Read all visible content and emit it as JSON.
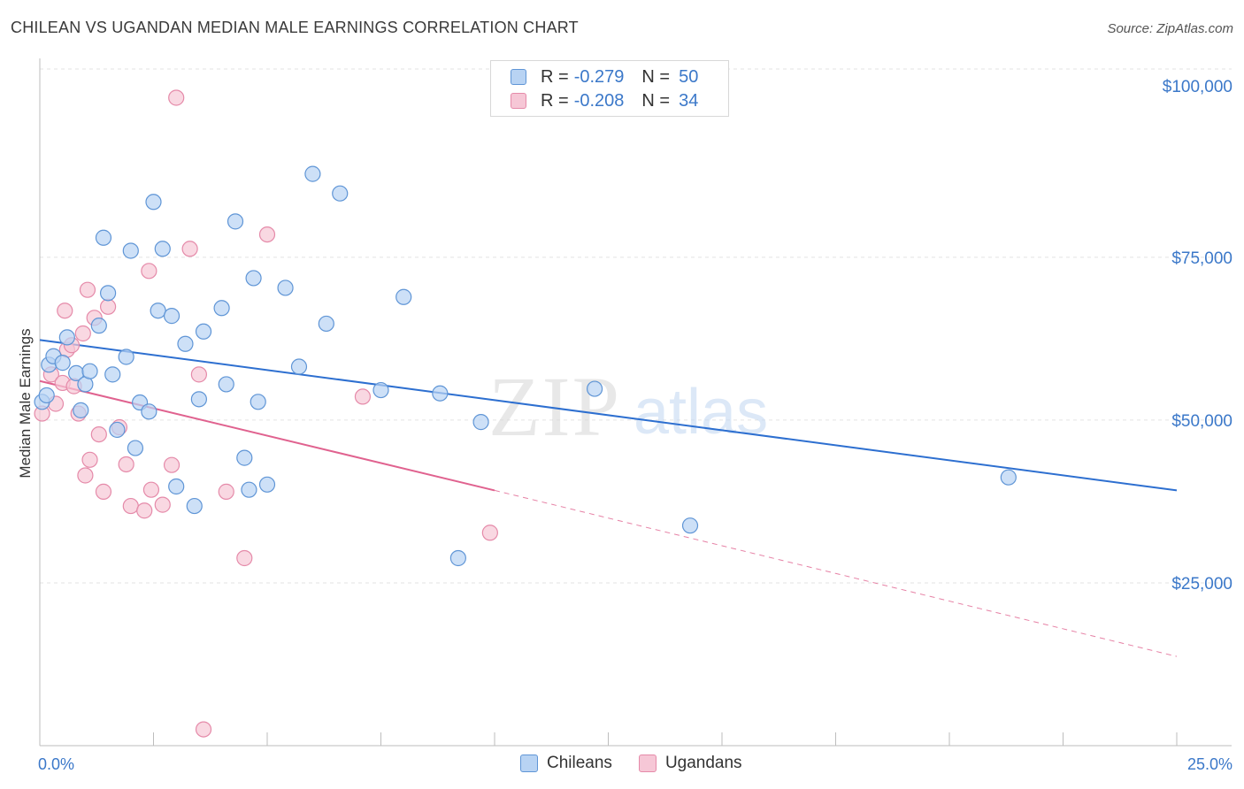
{
  "title": "CHILEAN VS UGANDAN MEDIAN MALE EARNINGS CORRELATION CHART",
  "source": "Source: ZipAtlas.com",
  "watermark": {
    "zip": "ZIP",
    "atlas": "atlas"
  },
  "legend": {
    "r_label": "R =",
    "n_label": "N =",
    "rows": [
      {
        "r": "-0.279",
        "n": "50"
      },
      {
        "r": "-0.208",
        "n": "34"
      }
    ]
  },
  "bottom_legend": [
    "Chileans",
    "Ugandans"
  ],
  "colors": {
    "chileans_fill": "#b8d3f3",
    "chileans_stroke": "#5f95d6",
    "chileans_line": "#2d6fd0",
    "ugandans_fill": "#f6c7d6",
    "ugandans_stroke": "#e58aa9",
    "ugandans_line": "#e0628f",
    "tick": "#3b78c9",
    "grid": "#e3e3e3"
  },
  "chart_data": {
    "type": "scatter",
    "title": "CHILEAN VS UGANDAN MEDIAN MALE EARNINGS CORRELATION CHART",
    "xlabel": "",
    "ylabel": "Median Male Earnings",
    "xlim": [
      0,
      25
    ],
    "ylim": [
      0,
      105000
    ],
    "x_tick_labels": [
      "0.0%",
      "25.0%"
    ],
    "y_ticks": [
      25000,
      50000,
      75000,
      100000
    ],
    "y_tick_labels": [
      "$25,000",
      "$50,000",
      "$75,000",
      "$100,000"
    ],
    "grid": true,
    "legend_position": "top-center",
    "series": [
      {
        "name": "Chileans",
        "points": [
          [
            0.2,
            58500
          ],
          [
            0.3,
            59800
          ],
          [
            0.5,
            58800
          ],
          [
            0.6,
            62700
          ],
          [
            0.8,
            57200
          ],
          [
            1.0,
            55500
          ],
          [
            0.9,
            51500
          ],
          [
            1.1,
            57500
          ],
          [
            1.3,
            64500
          ],
          [
            1.4,
            78000
          ],
          [
            1.5,
            69500
          ],
          [
            1.6,
            57000
          ],
          [
            1.7,
            48500
          ],
          [
            1.9,
            59700
          ],
          [
            2.0,
            76000
          ],
          [
            2.1,
            45700
          ],
          [
            2.2,
            52700
          ],
          [
            2.4,
            51300
          ],
          [
            2.5,
            83500
          ],
          [
            2.6,
            66800
          ],
          [
            2.7,
            76300
          ],
          [
            2.9,
            66000
          ],
          [
            3.0,
            39800
          ],
          [
            3.2,
            61700
          ],
          [
            3.4,
            36800
          ],
          [
            3.5,
            53200
          ],
          [
            3.6,
            63600
          ],
          [
            4.0,
            67200
          ],
          [
            4.1,
            55500
          ],
          [
            4.3,
            80500
          ],
          [
            4.5,
            44200
          ],
          [
            4.6,
            39300
          ],
          [
            4.7,
            71800
          ],
          [
            4.8,
            52800
          ],
          [
            5.0,
            40100
          ],
          [
            5.4,
            70300
          ],
          [
            5.7,
            58200
          ],
          [
            6.0,
            87800
          ],
          [
            6.3,
            64800
          ],
          [
            6.6,
            84800
          ],
          [
            7.5,
            54600
          ],
          [
            8.0,
            68900
          ],
          [
            8.8,
            54100
          ],
          [
            9.7,
            49700
          ],
          [
            12.2,
            54800
          ],
          [
            14.3,
            33800
          ],
          [
            21.3,
            41200
          ],
          [
            9.2,
            28800
          ],
          [
            0.05,
            52800
          ],
          [
            0.15,
            53800
          ]
        ],
        "trend": {
          "x0": 0,
          "y0": 62300,
          "x1": 25,
          "y1": 39200
        }
      },
      {
        "name": "Ugandans",
        "points": [
          [
            0.05,
            51000
          ],
          [
            0.25,
            57000
          ],
          [
            0.35,
            52500
          ],
          [
            0.5,
            55700
          ],
          [
            0.55,
            66800
          ],
          [
            0.6,
            60800
          ],
          [
            0.7,
            61500
          ],
          [
            0.75,
            55200
          ],
          [
            0.85,
            51000
          ],
          [
            0.95,
            63300
          ],
          [
            1.0,
            41500
          ],
          [
            1.05,
            70000
          ],
          [
            1.1,
            43900
          ],
          [
            1.2,
            65700
          ],
          [
            1.3,
            47800
          ],
          [
            1.4,
            39000
          ],
          [
            1.5,
            67400
          ],
          [
            1.75,
            48900
          ],
          [
            1.9,
            43200
          ],
          [
            2.0,
            36800
          ],
          [
            2.3,
            36100
          ],
          [
            2.4,
            72900
          ],
          [
            2.45,
            39300
          ],
          [
            2.7,
            37000
          ],
          [
            2.9,
            43100
          ],
          [
            3.0,
            99500
          ],
          [
            3.3,
            76300
          ],
          [
            3.5,
            57000
          ],
          [
            3.6,
            2500
          ],
          [
            4.1,
            39000
          ],
          [
            4.5,
            28800
          ],
          [
            5.0,
            78500
          ],
          [
            7.1,
            53600
          ],
          [
            9.9,
            32700
          ]
        ],
        "trend": {
          "x0": 0,
          "y0": 56000,
          "x1": 10.0,
          "y1": 39200
        },
        "trend_extension": {
          "x0": 10.0,
          "y0": 39200,
          "x1": 25,
          "y1": 13700
        }
      }
    ]
  }
}
